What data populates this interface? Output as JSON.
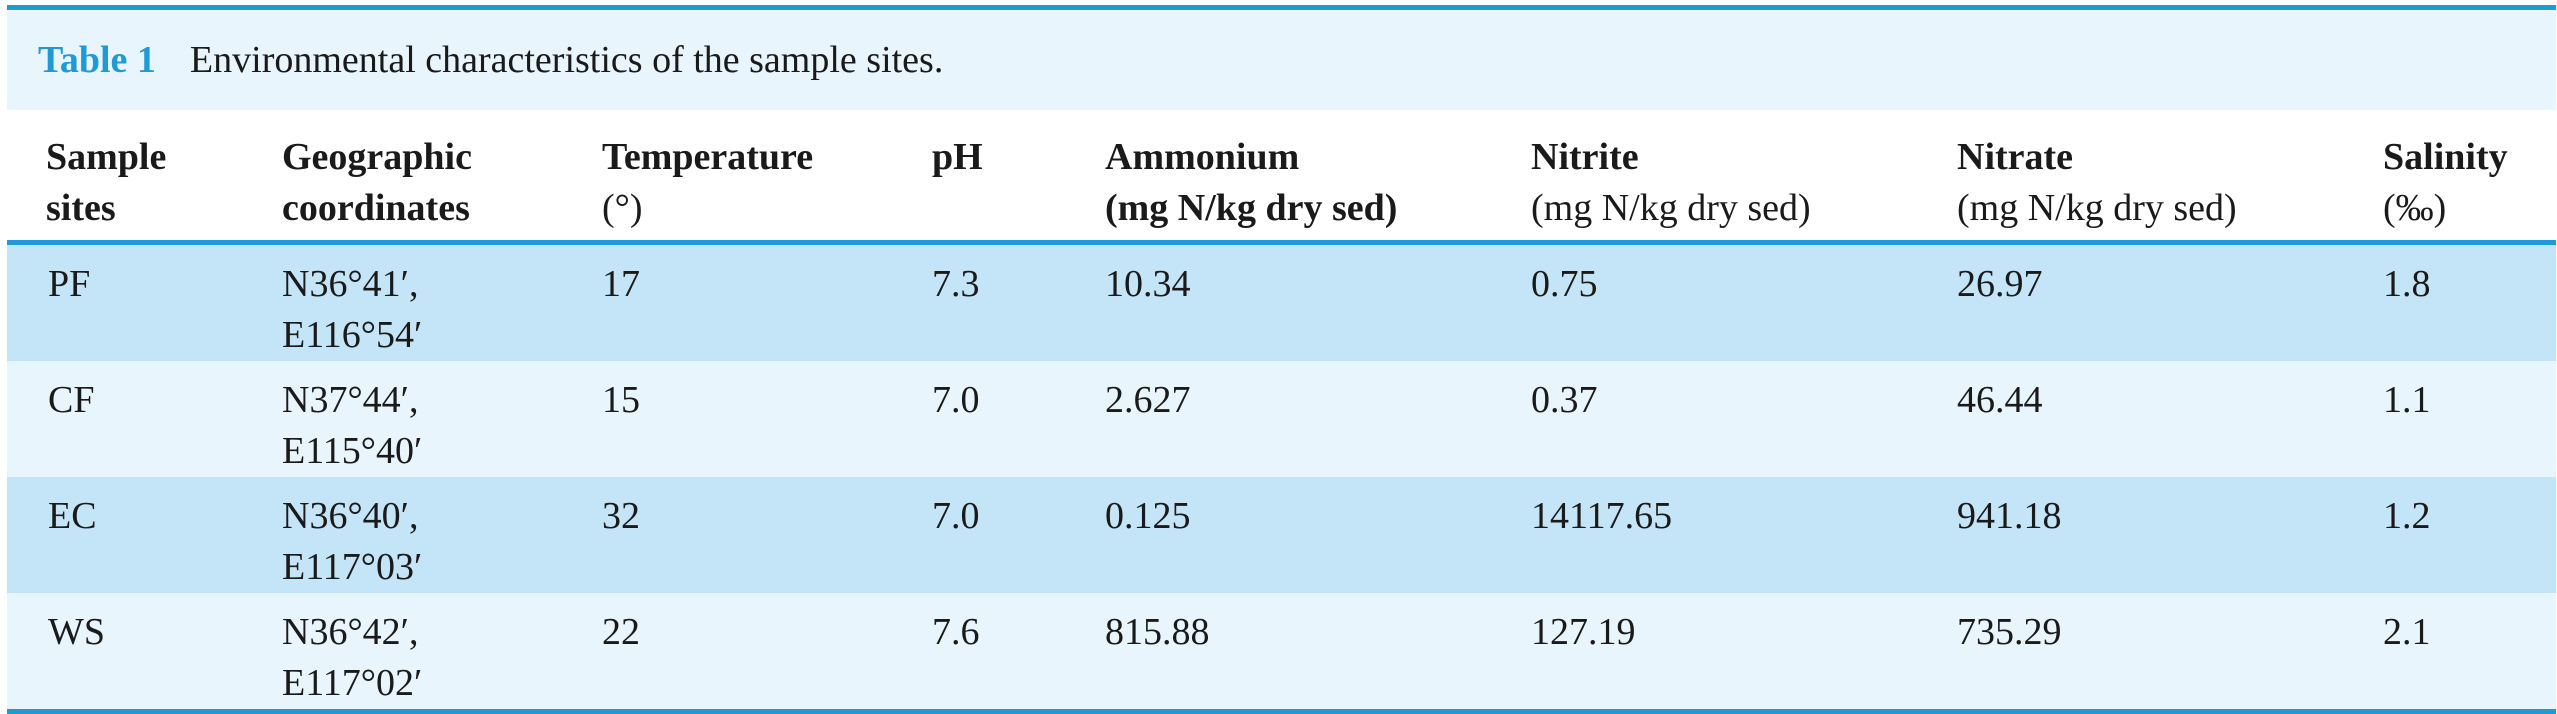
{
  "caption": {
    "label": "Table 1",
    "text": "Environmental characteristics of the sample sites."
  },
  "headers": [
    {
      "line1": "Sample",
      "line2": "sites"
    },
    {
      "line1": "Geographic",
      "line2": "coordinates"
    },
    {
      "line1": "Temperature",
      "line2": "(°)"
    },
    {
      "line1": "pH",
      "line2": ""
    },
    {
      "line1": "Ammonium",
      "line2": "(mg N/kg dry sed)"
    },
    {
      "line1": "Nitrite",
      "line2": "(mg N/kg dry sed)"
    },
    {
      "line1": "Nitrate",
      "line2": "(mg N/kg dry sed)"
    },
    {
      "line1": "Salinity",
      "line2": "(‰)"
    }
  ],
  "rows": [
    {
      "site": "PF",
      "lat": "N36°41′,",
      "lon": "E116°54′",
      "temperature": "17",
      "ph": "7.3",
      "ammonium": "10.34",
      "nitrite": "0.75",
      "nitrate": "26.97",
      "salinity": "1.8"
    },
    {
      "site": "CF",
      "lat": "N37°44′,",
      "lon": "E115°40′",
      "temperature": "15",
      "ph": "7.0",
      "ammonium": "2.627",
      "nitrite": "0.37",
      "nitrate": "46.44",
      "salinity": "1.1"
    },
    {
      "site": "EC",
      "lat": "N36°40′,",
      "lon": "E117°03′",
      "temperature": "32",
      "ph": "7.0",
      "ammonium": "0.125",
      "nitrite": "14117.65",
      "nitrate": "941.18",
      "salinity": "1.2"
    },
    {
      "site": "WS",
      "lat": "N36°42′,",
      "lon": "E117°02′",
      "temperature": "22",
      "ph": "7.6",
      "ammonium": "815.88",
      "nitrite": "127.19",
      "nitrate": "735.29",
      "salinity": "2.1"
    }
  ],
  "colors": {
    "accent": "#1f9ad6",
    "row_dark": "#c4e5f7",
    "row_light": "#e8f5fc"
  }
}
